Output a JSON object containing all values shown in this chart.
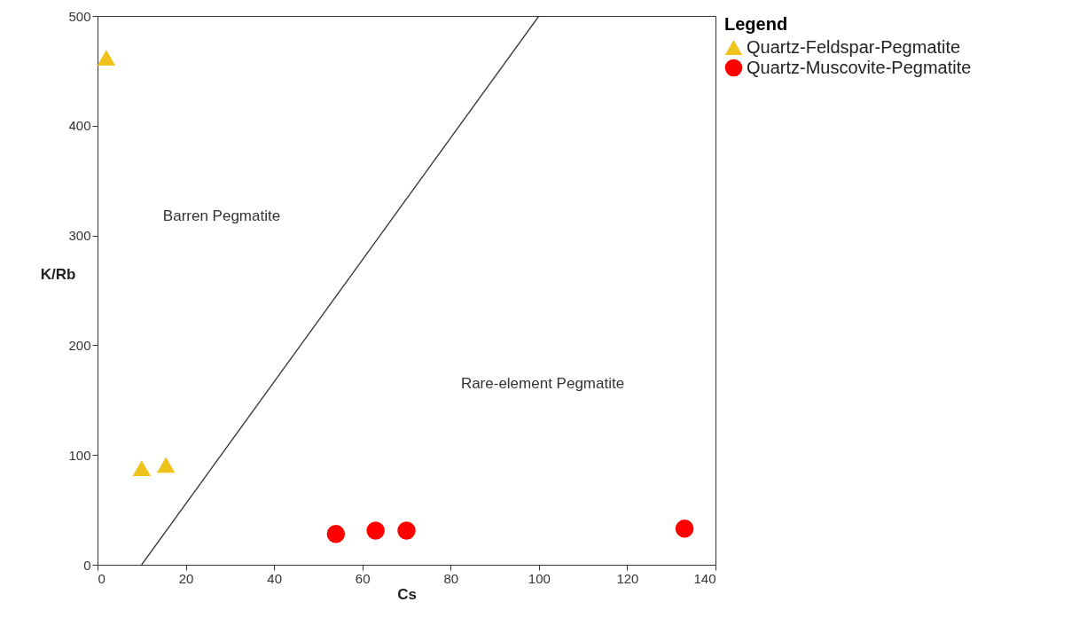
{
  "chart_data": {
    "type": "scatter",
    "xlabel": "Cs",
    "ylabel": "K/Rb",
    "legend_title": "Legend",
    "legend": "top right",
    "xlim": [
      0,
      140
    ],
    "xticks": [
      0,
      20,
      40,
      60,
      80,
      100,
      120,
      140
    ],
    "ylim": [
      0,
      500
    ],
    "yticks": [
      0,
      100,
      200,
      300,
      400,
      500
    ],
    "grid": false,
    "series": [
      {
        "name": "Quartz-Feldspar-Pegmatite",
        "color": "#f0c21c",
        "marker": "triangle",
        "x": [
          2,
          10,
          15.5
        ],
        "values": [
          462,
          88,
          91
        ]
      },
      {
        "name": "Quartz-Muscovite-Pegmatite",
        "color": "#ff0000",
        "marker": "circle",
        "x": [
          54,
          63,
          70,
          133
        ],
        "values": [
          28,
          31,
          31,
          33
        ]
      },
      {
        "type": "line",
        "color": "#333333",
        "x": [
          10,
          100
        ],
        "values": [
          0,
          500
        ]
      }
    ],
    "annotations": [
      "Barren Pegmatite",
      "Rare-element Pegmatite"
    ]
  }
}
